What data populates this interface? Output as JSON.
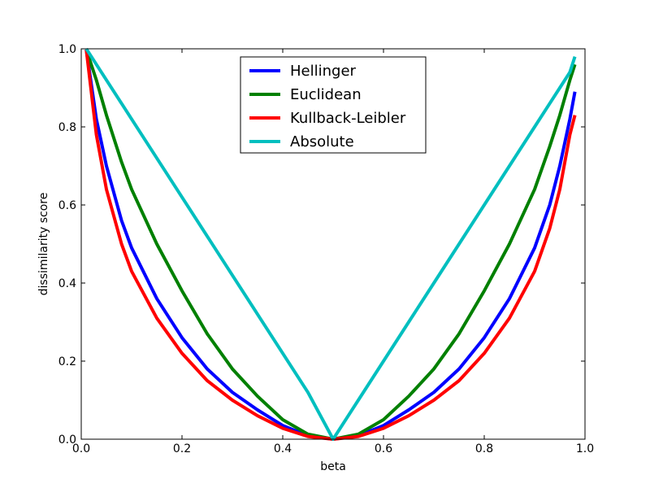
{
  "chart_data": {
    "type": "line",
    "title": "",
    "xlabel": "beta",
    "ylabel": "dissimilarity score",
    "xlim": [
      0.0,
      1.0
    ],
    "ylim": [
      0.0,
      1.0
    ],
    "xticks": [
      "0.0",
      "0.2",
      "0.4",
      "0.6",
      "0.8",
      "1.0"
    ],
    "yticks": [
      "0.0",
      "0.2",
      "0.4",
      "0.6",
      "0.8",
      "1.0"
    ],
    "grid": false,
    "legend_position": "top-center",
    "x": [
      0.01,
      0.03,
      0.05,
      0.08,
      0.1,
      0.15,
      0.2,
      0.25,
      0.3,
      0.35,
      0.4,
      0.45,
      0.5,
      0.55,
      0.6,
      0.65,
      0.7,
      0.75,
      0.8,
      0.85,
      0.9,
      0.93,
      0.95,
      0.97,
      0.98
    ],
    "series": [
      {
        "name": "Hellinger",
        "color": "#0000ff",
        "values": [
          0.998,
          0.82,
          0.7,
          0.56,
          0.49,
          0.36,
          0.26,
          0.18,
          0.12,
          0.075,
          0.035,
          0.009,
          0.0,
          0.009,
          0.035,
          0.075,
          0.12,
          0.18,
          0.26,
          0.36,
          0.49,
          0.6,
          0.7,
          0.82,
          0.89
        ]
      },
      {
        "name": "Euclidean",
        "color": "#008000",
        "values": [
          0.998,
          0.92,
          0.83,
          0.71,
          0.64,
          0.5,
          0.38,
          0.27,
          0.18,
          0.11,
          0.05,
          0.013,
          0.0,
          0.013,
          0.05,
          0.11,
          0.18,
          0.27,
          0.38,
          0.5,
          0.64,
          0.75,
          0.83,
          0.92,
          0.96
        ]
      },
      {
        "name": "Kullback-Leibler",
        "color": "#ff0000",
        "values": [
          0.998,
          0.78,
          0.64,
          0.5,
          0.43,
          0.31,
          0.22,
          0.15,
          0.1,
          0.06,
          0.028,
          0.007,
          0.0,
          0.007,
          0.028,
          0.06,
          0.1,
          0.15,
          0.22,
          0.31,
          0.43,
          0.54,
          0.64,
          0.78,
          0.83
        ]
      },
      {
        "name": "Absolute",
        "color": "#00bfbf",
        "values": [
          1.0,
          0.96,
          0.92,
          0.86,
          0.82,
          0.72,
          0.62,
          0.52,
          0.42,
          0.32,
          0.22,
          0.12,
          0.0,
          0.1,
          0.2,
          0.3,
          0.4,
          0.5,
          0.6,
          0.7,
          0.8,
          0.86,
          0.9,
          0.94,
          0.98
        ]
      }
    ]
  }
}
